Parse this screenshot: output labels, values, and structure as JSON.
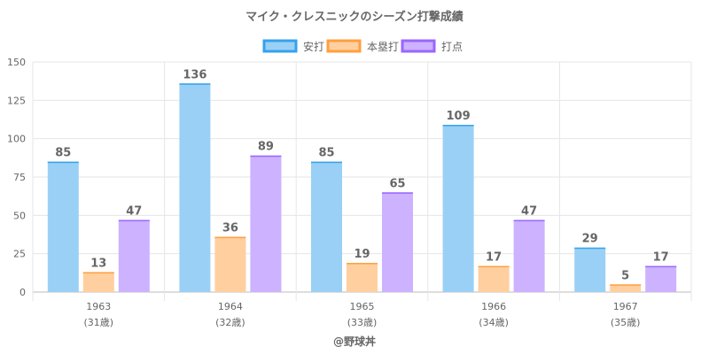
{
  "chart_data": {
    "type": "bar",
    "title": "マイク・クレスニックのシーズン打撃成績",
    "categories": [
      "1963",
      "1964",
      "1965",
      "1966",
      "1967"
    ],
    "category_sublabels": [
      "(31歳)",
      "(32歳)",
      "(33歳)",
      "(34歳)",
      "(35歳)"
    ],
    "series": [
      {
        "name": "安打",
        "values": [
          85,
          136,
          85,
          109,
          29
        ],
        "fill": "#9ad0f5",
        "stroke": "#36a2eb"
      },
      {
        "name": "本塁打",
        "values": [
          13,
          36,
          19,
          17,
          5
        ],
        "fill": "#ffcf9f",
        "stroke": "#ff9f40"
      },
      {
        "name": "打点",
        "values": [
          47,
          89,
          65,
          47,
          17
        ],
        "fill": "#ccb2ff",
        "stroke": "#9966ff"
      }
    ],
    "ylim": [
      0,
      150
    ],
    "yticks": [
      0,
      25,
      50,
      75,
      100,
      125,
      150
    ],
    "grid": true,
    "legend": "top-center",
    "credit": "@野球丼"
  }
}
